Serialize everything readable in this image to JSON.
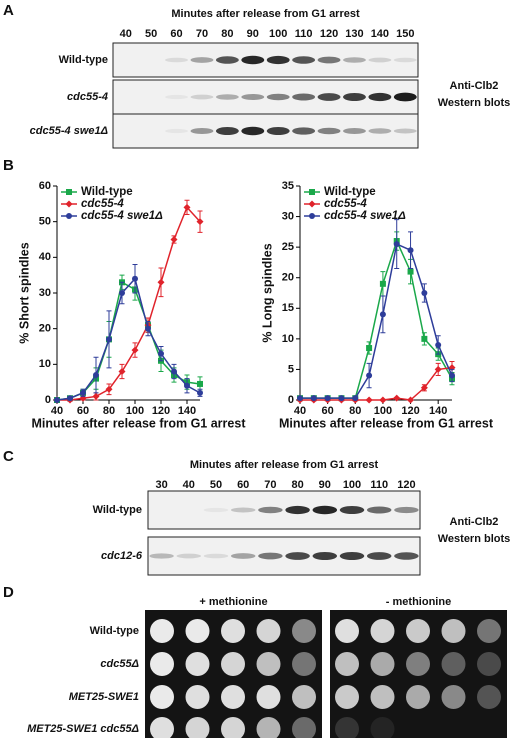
{
  "panels": {
    "A": {
      "label": "A",
      "header": "Minutes after release from G1 arrest",
      "lanes": [
        "40",
        "50",
        "60",
        "70",
        "80",
        "90",
        "100",
        "110",
        "120",
        "130",
        "140",
        "150"
      ],
      "rows": [
        "Wild-type",
        "cdc55-4",
        "cdc55-4 swe1Δ"
      ],
      "side": [
        "Anti-Clb2",
        "Western blots"
      ]
    },
    "B": {
      "label": "B"
    },
    "C": {
      "label": "C",
      "header": "Minutes after release from G1 arrest",
      "lanes": [
        "30",
        "40",
        "50",
        "60",
        "70",
        "80",
        "90",
        "100",
        "110",
        "120"
      ],
      "rows": [
        "Wild-type",
        "cdc12-6"
      ],
      "side": [
        "Anti-Clb2",
        "Western blots"
      ]
    },
    "D": {
      "label": "D",
      "conditions": [
        "+ methionine",
        "- methionine"
      ],
      "rows": [
        "Wild-type",
        "cdc55Δ",
        "MET25-SWE1",
        "MET25-SWE1 cdc55Δ"
      ]
    }
  },
  "chart_data": [
    {
      "type": "line",
      "xlabel": "Minutes after release from G1 arrest",
      "ylabel": "% Short spindles",
      "x": [
        40,
        50,
        60,
        70,
        80,
        90,
        100,
        110,
        120,
        130,
        140,
        150
      ],
      "xlim": [
        40,
        150
      ],
      "ylim": [
        0,
        60
      ],
      "xticks": [
        40,
        60,
        80,
        100,
        120,
        140
      ],
      "yticks": [
        0,
        10,
        20,
        30,
        40,
        50,
        60
      ],
      "legend": "upper left",
      "series": [
        {
          "name": "Wild-type",
          "color": "#1aa84a",
          "marker": "square",
          "values": [
            0,
            0.5,
            2,
            6,
            17,
            33,
            31,
            21,
            11,
            7,
            5,
            4.5
          ],
          "errors": [
            0.3,
            0.5,
            1,
            3,
            5,
            2,
            3,
            2,
            3,
            2,
            2,
            2
          ]
        },
        {
          "name": "cdc55-4",
          "color": "#e0232b",
          "marker": "diamond",
          "values": [
            0,
            0,
            0.5,
            1,
            3,
            8,
            14,
            21,
            33,
            45,
            54,
            50
          ],
          "errors": [
            0.3,
            0.3,
            0.5,
            1,
            1.5,
            2,
            2,
            2,
            4,
            1,
            2,
            3
          ]
        },
        {
          "name": "cdc55-4 swe1Δ",
          "color": "#2e3d9a",
          "marker": "circle",
          "values": [
            0,
            0.5,
            2,
            7,
            17,
            30,
            34,
            20,
            13,
            8,
            4,
            2
          ],
          "errors": [
            0.3,
            0.5,
            1,
            5,
            8,
            3,
            4,
            2,
            2,
            2,
            2,
            1
          ]
        }
      ]
    },
    {
      "type": "line",
      "xlabel": "Minutes after release from G1 arrest",
      "ylabel": "% Long spindles",
      "x": [
        40,
        50,
        60,
        70,
        80,
        90,
        100,
        110,
        120,
        130,
        140,
        150
      ],
      "xlim": [
        40,
        150
      ],
      "ylim": [
        0,
        35
      ],
      "xticks": [
        40,
        60,
        80,
        100,
        120,
        140
      ],
      "yticks": [
        0,
        5,
        10,
        15,
        20,
        25,
        30,
        35
      ],
      "legend": "upper left",
      "series": [
        {
          "name": "Wild-type",
          "color": "#1aa84a",
          "marker": "square",
          "values": [
            0.3,
            0.3,
            0.3,
            0.3,
            0.3,
            8.5,
            19,
            26,
            21,
            10,
            7.5,
            3.5
          ],
          "errors": [
            0.2,
            0.2,
            0.2,
            0.2,
            0.2,
            1,
            2,
            1.5,
            2,
            1,
            1,
            1
          ]
        },
        {
          "name": "cdc55-4",
          "color": "#e0232b",
          "marker": "diamond",
          "values": [
            0,
            0,
            0,
            0,
            0,
            0,
            0,
            0.3,
            0,
            2,
            5,
            5.3
          ],
          "errors": [
            0.1,
            0.1,
            0.1,
            0.1,
            0.1,
            0.1,
            0.1,
            0.1,
            0.1,
            0.5,
            1,
            1
          ]
        },
        {
          "name": "cdc55-4 swe1Δ",
          "color": "#2e3d9a",
          "marker": "circle",
          "values": [
            0.3,
            0.3,
            0.3,
            0.3,
            0.3,
            4,
            14,
            25.5,
            24.5,
            17.5,
            9,
            4
          ],
          "errors": [
            0.2,
            0.2,
            0.2,
            0.2,
            0.2,
            2,
            3,
            4,
            3,
            1.5,
            1.5,
            1
          ]
        }
      ]
    }
  ]
}
